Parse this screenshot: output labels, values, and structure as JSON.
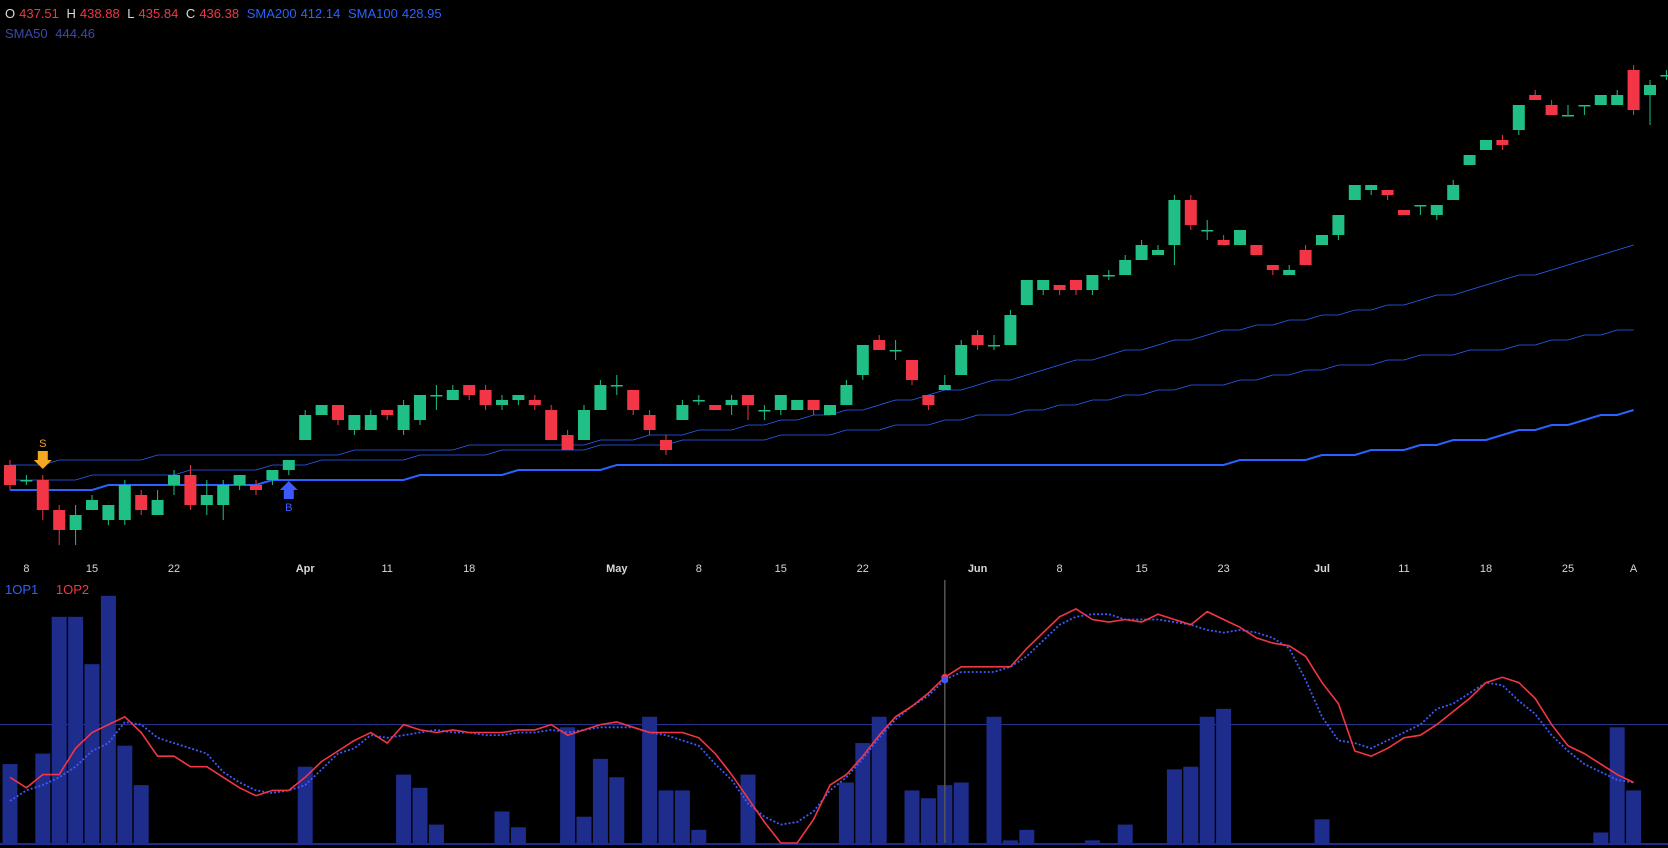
{
  "ohlc_legend": {
    "o_label": "O",
    "o_value": "437.51",
    "h_label": "H",
    "h_value": "438.88",
    "l_label": "L",
    "l_value": "435.84",
    "c_label": "C",
    "c_value": "436.38",
    "sma200_label": "SMA200",
    "sma200_value": "412.14",
    "sma100_label": "SMA100",
    "sma100_value": "428.95",
    "sma50_label": "SMA50",
    "sma50_value": "444.46"
  },
  "indicator_legend": {
    "series1": "1OP1",
    "series2": "1OP2"
  },
  "colors": {
    "up": "#26a69a",
    "up_bright": "#1fbf86",
    "down": "#f23645",
    "sma": "#2962ff",
    "hist": "#1e2c8c",
    "op1": "#3d5afe",
    "op2": "#f23645",
    "sell_marker": "#f5a623"
  },
  "chart_data": {
    "type": "candlestick",
    "title": "",
    "x_tick_labels": [
      "8",
      "15",
      "22",
      "Apr",
      "11",
      "18",
      "May",
      "8",
      "15",
      "22",
      "Jun",
      "8",
      "15",
      "23",
      "Jul",
      "11",
      "18",
      "25",
      "A"
    ],
    "x_tick_index": [
      1,
      5,
      10,
      18,
      23,
      28,
      37,
      42,
      47,
      52,
      59,
      64,
      69,
      74,
      80,
      85,
      90,
      95,
      99
    ],
    "month_labels": [
      "Apr",
      "May",
      "Jun",
      "Jul"
    ],
    "candles": [
      [
        414,
        410,
        415,
        409
      ],
      [
        411,
        411,
        412,
        410
      ],
      [
        411,
        405,
        412,
        403
      ],
      [
        405,
        401,
        406,
        398
      ],
      [
        401,
        404,
        406,
        398
      ],
      [
        405,
        407,
        408,
        405
      ],
      [
        403,
        406,
        406,
        402
      ],
      [
        403,
        410,
        411,
        402
      ],
      [
        408,
        405,
        409,
        404
      ],
      [
        404,
        407,
        409,
        404
      ],
      [
        410,
        412,
        413,
        408
      ],
      [
        412,
        406,
        414,
        405
      ],
      [
        406,
        408,
        411,
        404
      ],
      [
        406,
        410,
        411,
        403
      ],
      [
        410,
        412,
        412,
        409
      ],
      [
        410,
        409,
        411,
        408
      ],
      [
        411,
        413,
        413,
        410
      ],
      [
        413,
        415,
        415,
        412
      ],
      [
        419,
        424,
        425,
        419
      ],
      [
        424,
        426,
        426,
        424
      ],
      [
        426,
        423,
        426,
        422
      ],
      [
        421,
        424,
        424,
        420
      ],
      [
        421,
        424,
        425,
        421
      ],
      [
        425,
        424,
        425,
        423
      ],
      [
        421,
        426,
        427,
        420
      ],
      [
        423,
        428,
        428,
        422
      ],
      [
        428,
        428,
        430,
        425
      ],
      [
        427,
        429,
        430,
        427
      ],
      [
        430,
        428,
        430,
        427
      ],
      [
        429,
        426,
        430,
        425
      ],
      [
        426,
        427,
        428,
        425
      ],
      [
        427,
        428,
        428,
        426
      ],
      [
        427,
        426,
        428,
        425
      ],
      [
        425,
        419,
        426,
        419
      ],
      [
        420,
        417,
        421,
        417
      ],
      [
        419,
        425,
        426,
        419
      ],
      [
        425,
        430,
        431,
        425
      ],
      [
        430,
        430,
        432,
        428
      ],
      [
        429,
        425,
        429,
        424
      ],
      [
        424,
        421,
        425,
        420
      ],
      [
        419,
        417,
        420,
        416
      ],
      [
        423,
        426,
        427,
        423
      ],
      [
        427,
        427,
        428,
        426
      ],
      [
        426,
        425,
        426,
        425
      ],
      [
        426,
        427,
        428,
        424
      ],
      [
        428,
        426,
        428,
        423
      ],
      [
        425,
        425,
        426,
        423
      ],
      [
        425,
        428,
        428,
        424
      ],
      [
        425,
        427,
        427,
        425
      ],
      [
        427,
        425,
        427,
        424
      ],
      [
        424,
        426,
        426,
        424
      ],
      [
        426,
        430,
        431,
        426
      ],
      [
        432,
        438,
        438,
        431
      ],
      [
        439,
        437,
        440,
        437
      ],
      [
        437,
        437,
        439,
        435
      ],
      [
        435,
        431,
        435,
        430
      ],
      [
        428,
        426,
        428,
        425
      ],
      [
        429,
        430,
        432,
        429
      ],
      [
        432,
        438,
        439,
        432
      ],
      [
        440,
        438,
        441,
        437
      ],
      [
        438,
        438,
        440,
        437
      ],
      [
        438,
        444,
        445,
        438
      ],
      [
        446,
        451,
        451,
        446
      ],
      [
        449,
        451,
        451,
        448
      ],
      [
        450,
        449,
        450,
        448
      ],
      [
        451,
        449,
        451,
        448
      ],
      [
        449,
        452,
        452,
        448
      ],
      [
        452,
        452,
        453,
        451
      ],
      [
        452,
        455,
        456,
        452
      ],
      [
        455,
        458,
        459,
        455
      ],
      [
        456,
        457,
        458,
        456
      ],
      [
        458,
        467,
        468,
        454
      ],
      [
        467,
        462,
        468,
        461
      ],
      [
        461,
        461,
        463,
        459
      ],
      [
        459,
        458,
        460,
        458
      ],
      [
        458,
        461,
        461,
        458
      ],
      [
        458,
        456,
        458,
        456
      ],
      [
        454,
        453,
        454,
        452
      ],
      [
        452,
        453,
        454,
        452
      ],
      [
        457,
        454,
        458,
        454
      ],
      [
        458,
        460,
        460,
        458
      ],
      [
        460,
        464,
        464,
        459
      ],
      [
        467,
        470,
        470,
        467
      ],
      [
        469,
        470,
        470,
        468
      ],
      [
        469,
        468,
        469,
        467
      ],
      [
        465,
        464,
        465,
        464
      ],
      [
        466,
        466,
        466,
        464
      ],
      [
        464,
        466,
        466,
        463
      ],
      [
        467,
        470,
        471,
        467
      ],
      [
        474,
        476,
        476,
        474
      ],
      [
        477,
        479,
        479,
        477
      ],
      [
        479,
        478,
        480,
        477
      ],
      [
        481,
        486,
        486,
        480
      ],
      [
        488,
        487,
        489,
        487
      ],
      [
        486,
        484,
        487,
        484
      ],
      [
        484,
        484,
        486,
        484
      ],
      [
        486,
        486,
        486,
        484
      ],
      [
        486,
        488,
        488,
        486
      ],
      [
        486,
        488,
        489,
        486
      ],
      [
        493,
        485,
        494,
        484
      ],
      [
        488,
        490,
        491,
        482
      ],
      [
        492,
        492,
        493,
        491
      ]
    ],
    "sma200": [
      409,
      409,
      409,
      409,
      409,
      409,
      410,
      410,
      410,
      410,
      410,
      410,
      410,
      410,
      410,
      410,
      411,
      411,
      411,
      411,
      411,
      411,
      411,
      411,
      411,
      412,
      412,
      412,
      412,
      412,
      412,
      413,
      413,
      413,
      413,
      413,
      413,
      414,
      414,
      414,
      414,
      414,
      414,
      414,
      414,
      414,
      414,
      414,
      414,
      414,
      414,
      414,
      414,
      414,
      414,
      414,
      414,
      414,
      414,
      414,
      414,
      414,
      414,
      414,
      414,
      414,
      414,
      414,
      414,
      414,
      414,
      414,
      414,
      414,
      414,
      415,
      415,
      415,
      415,
      415,
      416,
      416,
      416,
      417,
      417,
      417,
      418,
      418,
      419,
      419,
      419,
      420,
      421,
      421,
      422,
      422,
      423,
      424,
      424,
      425
    ],
    "sma100": [
      411,
      411,
      411,
      411,
      411,
      412,
      412,
      412,
      412,
      412,
      412,
      413,
      413,
      413,
      413,
      413,
      414,
      414,
      414,
      415,
      415,
      415,
      415,
      415,
      415,
      416,
      416,
      416,
      416,
      416,
      417,
      417,
      417,
      417,
      417,
      417,
      418,
      418,
      418,
      418,
      418,
      419,
      419,
      419,
      419,
      419,
      419,
      420,
      420,
      420,
      420,
      421,
      421,
      421,
      422,
      422,
      422,
      423,
      423,
      424,
      424,
      424,
      425,
      425,
      426,
      426,
      427,
      427,
      428,
      428,
      429,
      429,
      430,
      430,
      430,
      431,
      431,
      432,
      432,
      433,
      433,
      434,
      434,
      434,
      435,
      435,
      436,
      436,
      436,
      437,
      437,
      437,
      438,
      438,
      439,
      439,
      440,
      440,
      441,
      441
    ],
    "sma50": [
      414,
      414,
      414,
      415,
      415,
      415,
      415,
      415,
      415,
      416,
      416,
      416,
      416,
      416,
      416,
      416,
      416,
      416,
      416,
      416,
      416,
      417,
      417,
      417,
      417,
      417,
      417,
      417,
      418,
      418,
      418,
      418,
      418,
      418,
      418,
      418,
      419,
      419,
      419,
      420,
      420,
      420,
      421,
      421,
      421,
      422,
      422,
      423,
      423,
      424,
      424,
      425,
      425,
      426,
      427,
      427,
      428,
      429,
      429,
      430,
      431,
      431,
      432,
      433,
      434,
      435,
      435,
      436,
      437,
      437,
      438,
      439,
      439,
      440,
      441,
      441,
      442,
      442,
      443,
      443,
      444,
      444,
      445,
      445,
      446,
      446,
      447,
      448,
      448,
      449,
      450,
      451,
      452,
      452,
      453,
      454,
      455,
      456,
      457,
      458
    ],
    "signals": [
      {
        "type": "sell",
        "index": 2,
        "label": "S"
      },
      {
        "type": "buy",
        "index": 17,
        "label": "B"
      }
    ],
    "indicator": {
      "hist": [
        30,
        0,
        34,
        86,
        86,
        68,
        94,
        37,
        22,
        0,
        0,
        0,
        0,
        0,
        0,
        0,
        0,
        0,
        29,
        0,
        0,
        0,
        0,
        0,
        26,
        21,
        7,
        0,
        0,
        0,
        12,
        6,
        0,
        0,
        44,
        10,
        32,
        25,
        0,
        48,
        20,
        20,
        5,
        0,
        0,
        26,
        0,
        0,
        0,
        0,
        0,
        23,
        38,
        48,
        0,
        20,
        17,
        22,
        23,
        0,
        48,
        1,
        5,
        0,
        0,
        0,
        1,
        0,
        7,
        0,
        0,
        28,
        29,
        48,
        51,
        0,
        0,
        0,
        0,
        0,
        9,
        0,
        0,
        0,
        0,
        0,
        0,
        0,
        0,
        0,
        0,
        0,
        0,
        0,
        0,
        0,
        0,
        4,
        44,
        20
      ],
      "op2": [
        25,
        21,
        26,
        26,
        36,
        42,
        45,
        48,
        42,
        33,
        33,
        29,
        29,
        25,
        21,
        18,
        20,
        20,
        25,
        31,
        35,
        39,
        42,
        38,
        45,
        43,
        42,
        43,
        42,
        42,
        42,
        43,
        43,
        45,
        41,
        43,
        45,
        46,
        44,
        42,
        42,
        42,
        40,
        34,
        26,
        17,
        8,
        0,
        0,
        9,
        22,
        26,
        33,
        41,
        48,
        52,
        57,
        63,
        67,
        67,
        67,
        67,
        74,
        80,
        86,
        89,
        85,
        84,
        85,
        84,
        87,
        85,
        83,
        88,
        85,
        82,
        78,
        76,
        75,
        71,
        61,
        53,
        35,
        33,
        36,
        40,
        41,
        45,
        50,
        55,
        61,
        63,
        61,
        55,
        45,
        37,
        34,
        30,
        26,
        23
      ],
      "op1": [
        16,
        20,
        22,
        25,
        29,
        35,
        38,
        46,
        45,
        40,
        38,
        36,
        34,
        27,
        23,
        20,
        19,
        20,
        22,
        28,
        34,
        36,
        41,
        40,
        41,
        42,
        43,
        42,
        42,
        41,
        41,
        42,
        42,
        43,
        42,
        43,
        44,
        44,
        44,
        42,
        41,
        39,
        37,
        30,
        24,
        15,
        10,
        7,
        8,
        12,
        20,
        25,
        32,
        40,
        47,
        52,
        56,
        62,
        65,
        65,
        65,
        67,
        71,
        77,
        83,
        86,
        87,
        87,
        85,
        85,
        85,
        84,
        83,
        81,
        80,
        81,
        80,
        78,
        74,
        62,
        48,
        39,
        38,
        36,
        39,
        42,
        45,
        51,
        53,
        57,
        61,
        60,
        54,
        49,
        41,
        35,
        30,
        27,
        24,
        23
      ],
      "level": 45
    }
  }
}
